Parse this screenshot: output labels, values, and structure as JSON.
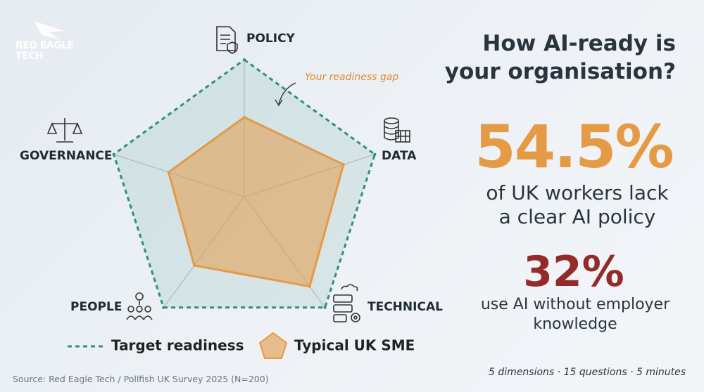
{
  "logo": "RED EAGLE TECH",
  "headline": "How AI-ready is your organisation?",
  "stats": [
    {
      "figure": "54.5%",
      "text": "of UK workers lack a clear AI policy"
    },
    {
      "figure": "32%",
      "text": "use AI without employer knowledge"
    }
  ],
  "source": "Source: Red Eagle Tech / Pollfish UK Survey 2025 (N=200)",
  "footnote": "5 dimensions · 15 questions · 5 minutes",
  "chart_data": {
    "type": "radar",
    "categories": [
      "POLICY",
      "DATA",
      "TECHNICAL",
      "PEOPLE",
      "GOVERNANCE"
    ],
    "rlim": [
      0,
      100
    ],
    "annotation": "Your readiness gap",
    "series": [
      {
        "name": "Target readiness",
        "color": "#2f8f7f",
        "values": [
          100,
          100,
          100,
          100,
          100
        ]
      },
      {
        "name": "Typical UK SME",
        "color": "#e39a48",
        "values": [
          58,
          76,
          81,
          62,
          58
        ]
      }
    ]
  }
}
